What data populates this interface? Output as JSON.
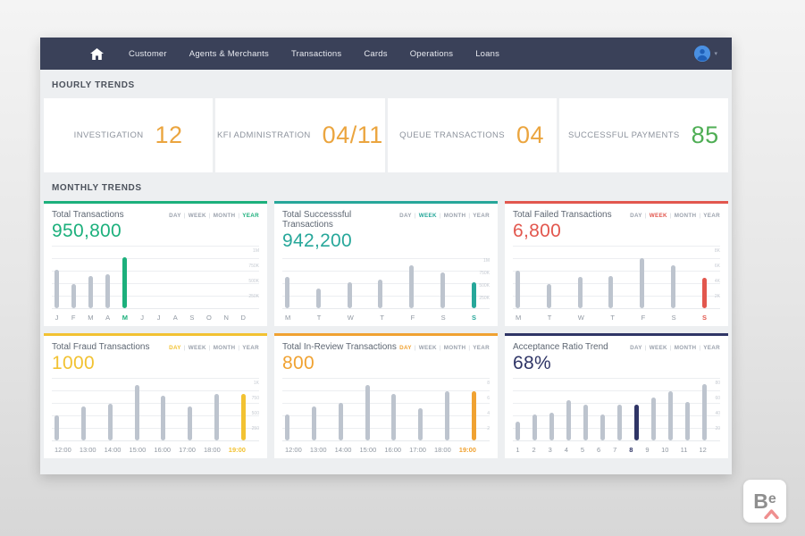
{
  "nav": {
    "items": [
      "Customer",
      "Agents & Merchants",
      "Transactions",
      "Cards",
      "Operations",
      "Loans"
    ]
  },
  "sections": {
    "hourly": "HOURLY TRENDS",
    "monthly": "MONTHLY TRENDS"
  },
  "kpis": [
    {
      "label": "INVESTIGATION",
      "value": "12",
      "color": "#eba53f"
    },
    {
      "label": "KFI ADMINISTRATION",
      "value": "04/11",
      "color": "#eba53f"
    },
    {
      "label": "QUEUE TRANSACTIONS",
      "value": "04",
      "color": "#eba53f"
    },
    {
      "label": "SUCCESSFUL PAYMENTS",
      "value": "85",
      "color": "#4fae55"
    }
  ],
  "period_options": [
    "DAY",
    "WEEK",
    "MONTH",
    "YEAR"
  ],
  "chart_data": [
    {
      "type": "bar",
      "title": "Total Transactions",
      "value": "950,800",
      "accent": "#1cb07c",
      "active_period": "YEAR",
      "categories": [
        "J",
        "F",
        "M",
        "A",
        "M",
        "J",
        "J",
        "A",
        "S",
        "O",
        "N",
        "D"
      ],
      "values": [
        62,
        38,
        52,
        55,
        82,
        0,
        0,
        0,
        0,
        0,
        0,
        0
      ],
      "highlight_index": 4,
      "yticks": [
        "1M",
        "750K",
        "500K",
        "250K"
      ],
      "ylim": [
        0,
        100
      ],
      "ylabel": ""
    },
    {
      "type": "bar",
      "title": "Total Successsful Transactions",
      "value": "942,200",
      "accent": "#27a79a",
      "active_period": "WEEK",
      "categories": [
        "M",
        "T",
        "W",
        "T",
        "F",
        "S",
        "S"
      ],
      "values": [
        60,
        38,
        50,
        54,
        82,
        68,
        50
      ],
      "highlight_index": 6,
      "yticks": [
        "1M",
        "750K",
        "500K",
        "250K"
      ],
      "ylim": [
        0,
        100
      ],
      "ylabel": ""
    },
    {
      "type": "bar",
      "title": "Total Failed Transactions",
      "value": "6,800",
      "accent": "#e2574e",
      "active_period": "WEEK",
      "categories": [
        "M",
        "T",
        "W",
        "T",
        "F",
        "S",
        "S"
      ],
      "values": [
        60,
        38,
        50,
        52,
        80,
        68,
        48
      ],
      "highlight_index": 6,
      "yticks": [
        "8K",
        "6K",
        "4K",
        "2K"
      ],
      "ylim": [
        0,
        100
      ],
      "ylabel": ""
    },
    {
      "type": "bar",
      "title": "Total Fraud Transactions",
      "value": "1000",
      "accent": "#f2c232",
      "active_period": "DAY",
      "categories": [
        "12:00",
        "13:00",
        "14:00",
        "15:00",
        "16:00",
        "17:00",
        "18:00",
        "19:00"
      ],
      "values": [
        40,
        55,
        58,
        88,
        72,
        55,
        75,
        75
      ],
      "highlight_index": 7,
      "yticks": [
        "1K",
        "750",
        "500",
        "250"
      ],
      "ylim": [
        0,
        100
      ],
      "ylabel": ""
    },
    {
      "type": "bar",
      "title": "Total In-Review Transactions",
      "value": "800",
      "accent": "#f0a232",
      "active_period": "DAY",
      "categories": [
        "12:00",
        "13:00",
        "14:00",
        "15:00",
        "16:00",
        "17:00",
        "18:00",
        "19:00"
      ],
      "values": [
        42,
        55,
        60,
        88,
        75,
        52,
        78,
        78
      ],
      "highlight_index": 7,
      "yticks": [
        "8",
        "6",
        "4",
        "2"
      ],
      "ylim": [
        0,
        100
      ],
      "ylabel": ""
    },
    {
      "type": "bar",
      "title": "Acceptance Ratio Trend",
      "value": "68%",
      "accent": "#2f3566",
      "active_period": null,
      "categories": [
        "1",
        "2",
        "3",
        "4",
        "5",
        "6",
        "7",
        "8",
        "9",
        "10",
        "11",
        "12"
      ],
      "values": [
        30,
        42,
        45,
        65,
        57,
        42,
        57,
        57,
        68,
        78,
        62,
        90
      ],
      "highlight_index": 7,
      "yticks": [
        "80",
        "60",
        "40",
        "20"
      ],
      "ylim": [
        0,
        100
      ],
      "ylabel": ""
    }
  ],
  "watermark": {
    "b": "B",
    "e": "e"
  }
}
